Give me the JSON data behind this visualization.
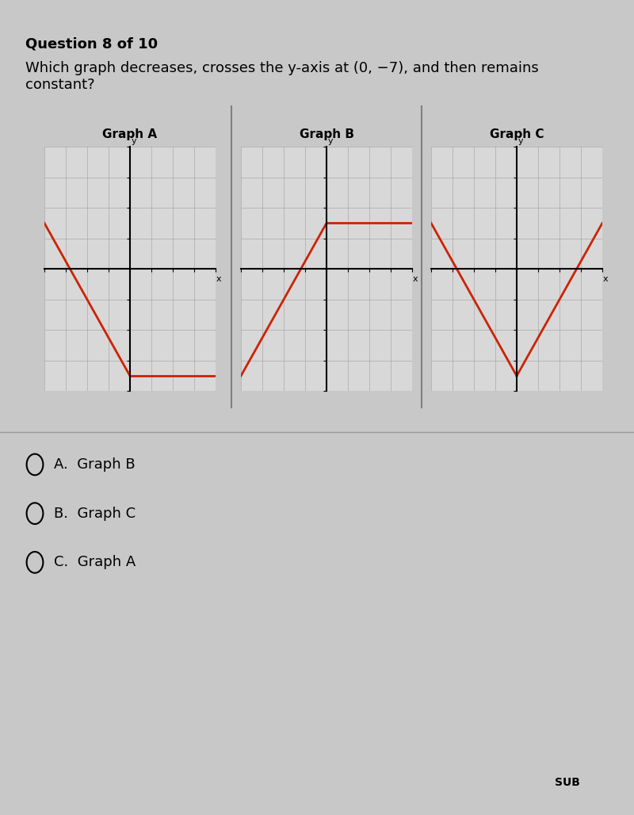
{
  "title": "Question 8 of 10",
  "question": "Which graph decreases, crosses the y-axis at (0, −7), and then remains\nconstant?",
  "background_color": "#c8c8c8",
  "graph_bg_color": "#d8d8d8",
  "grid_color": "#aaaaaa",
  "line_color": "#cc2200",
  "answer_choices": [
    "A.  Graph B",
    "B.  Graph C",
    "C.  Graph A"
  ],
  "graph_titles": [
    "Graph A",
    "Graph B",
    "Graph C"
  ],
  "axis_range": [
    -8,
    8
  ],
  "graph_A": {
    "segments": [
      [
        [
          -8,
          3
        ],
        [
          0,
          -7
        ]
      ],
      [
        [
          0,
          -7
        ],
        [
          8,
          -7
        ]
      ]
    ]
  },
  "graph_B": {
    "segments": [
      [
        [
          -8,
          -7
        ],
        [
          0,
          3
        ]
      ],
      [
        [
          0,
          3
        ],
        [
          8,
          3
        ]
      ]
    ]
  },
  "graph_C": {
    "segments": [
      [
        [
          -8,
          3
        ],
        [
          0,
          -7
        ]
      ],
      [
        [
          0,
          -7
        ],
        [
          8,
          3
        ]
      ]
    ]
  }
}
